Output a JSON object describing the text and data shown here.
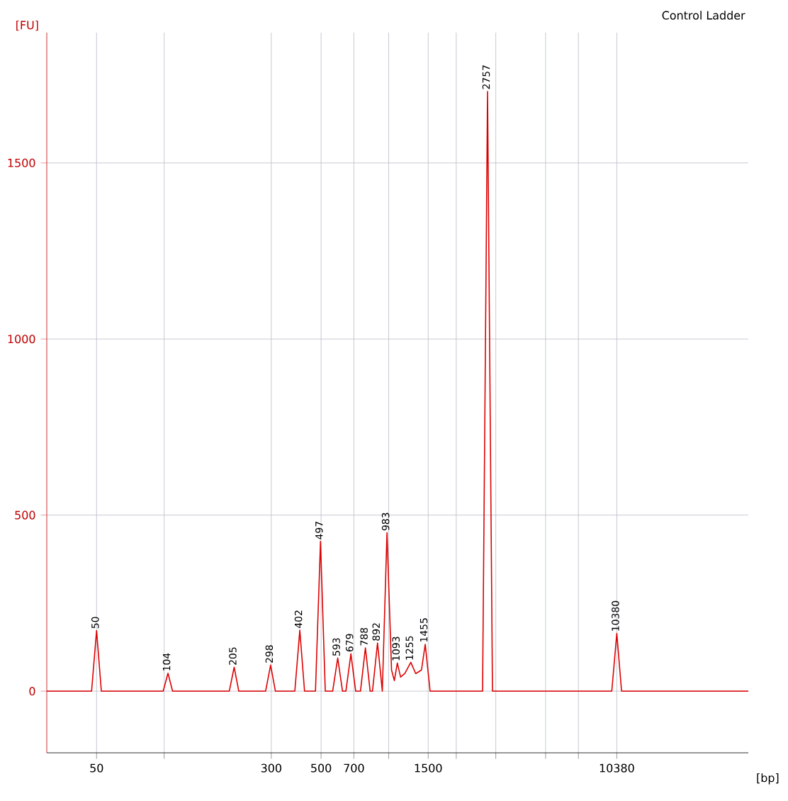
{
  "chart_data": {
    "type": "line",
    "title": "Control Ladder",
    "xlabel": "[bp]",
    "ylabel": "[FU]",
    "color": "#dd0000",
    "log": "x",
    "grid": true,
    "x": [
      30,
      47.5,
      50,
      52.5,
      99,
      104,
      109,
      195,
      205,
      215,
      283,
      298,
      313,
      382,
      402,
      422,
      472,
      497,
      522,
      563,
      593,
      623,
      645,
      679,
      713,
      749,
      788,
      827,
      847,
      892,
      937,
      983,
      1030,
      1060,
      1093,
      1130,
      1180,
      1255,
      1320,
      1400,
      1455,
      1530,
      2620,
      2757,
      2900,
      9860,
      10380,
      10900,
      40000
    ],
    "values": [
      0,
      0,
      172,
      0,
      0,
      51,
      0,
      0,
      68,
      0,
      0,
      74,
      0,
      0,
      173,
      0,
      0,
      425,
      0,
      0,
      94,
      0,
      0,
      106,
      0,
      0,
      123,
      0,
      0,
      137,
      0,
      450,
      60,
      30,
      80,
      40,
      50,
      82,
      50,
      60,
      133,
      0,
      0,
      1703,
      0,
      0,
      164,
      0,
      0
    ],
    "xlim": [
      30,
      40000
    ],
    "ylim": [
      -175,
      1870
    ],
    "xticks": [
      50,
      {
        "value": 100,
        "label": null
      },
      300,
      500,
      700,
      {
        "value": 1000,
        "label": null
      },
      1500,
      {
        "value": 2000,
        "label": null
      },
      {
        "value": 3000,
        "label": null
      },
      {
        "value": 5000,
        "label": null
      },
      {
        "value": 7000,
        "label": null
      },
      10380
    ],
    "yticks": [
      0,
      500,
      1000,
      1500
    ],
    "annotations": [
      {
        "text": "50",
        "x": 50,
        "y": 172
      },
      {
        "text": "104",
        "x": 104,
        "y": 51
      },
      {
        "text": "205",
        "x": 205,
        "y": 68
      },
      {
        "text": "298",
        "x": 298,
        "y": 74
      },
      {
        "text": "402",
        "x": 402,
        "y": 173
      },
      {
        "text": "497",
        "x": 497,
        "y": 425
      },
      {
        "text": "593",
        "x": 593,
        "y": 94
      },
      {
        "text": "679",
        "x": 679,
        "y": 106
      },
      {
        "text": "788",
        "x": 788,
        "y": 123
      },
      {
        "text": "892",
        "x": 892,
        "y": 137
      },
      {
        "text": "983",
        "x": 983,
        "y": 450
      },
      {
        "text": "1093",
        "x": 1093,
        "y": 80
      },
      {
        "text": "1255",
        "x": 1255,
        "y": 82
      },
      {
        "text": "1455",
        "x": 1455,
        "y": 133
      },
      {
        "text": "2757",
        "x": 2757,
        "y": 1703
      },
      {
        "text": "10380",
        "x": 10380,
        "y": 164
      }
    ]
  }
}
